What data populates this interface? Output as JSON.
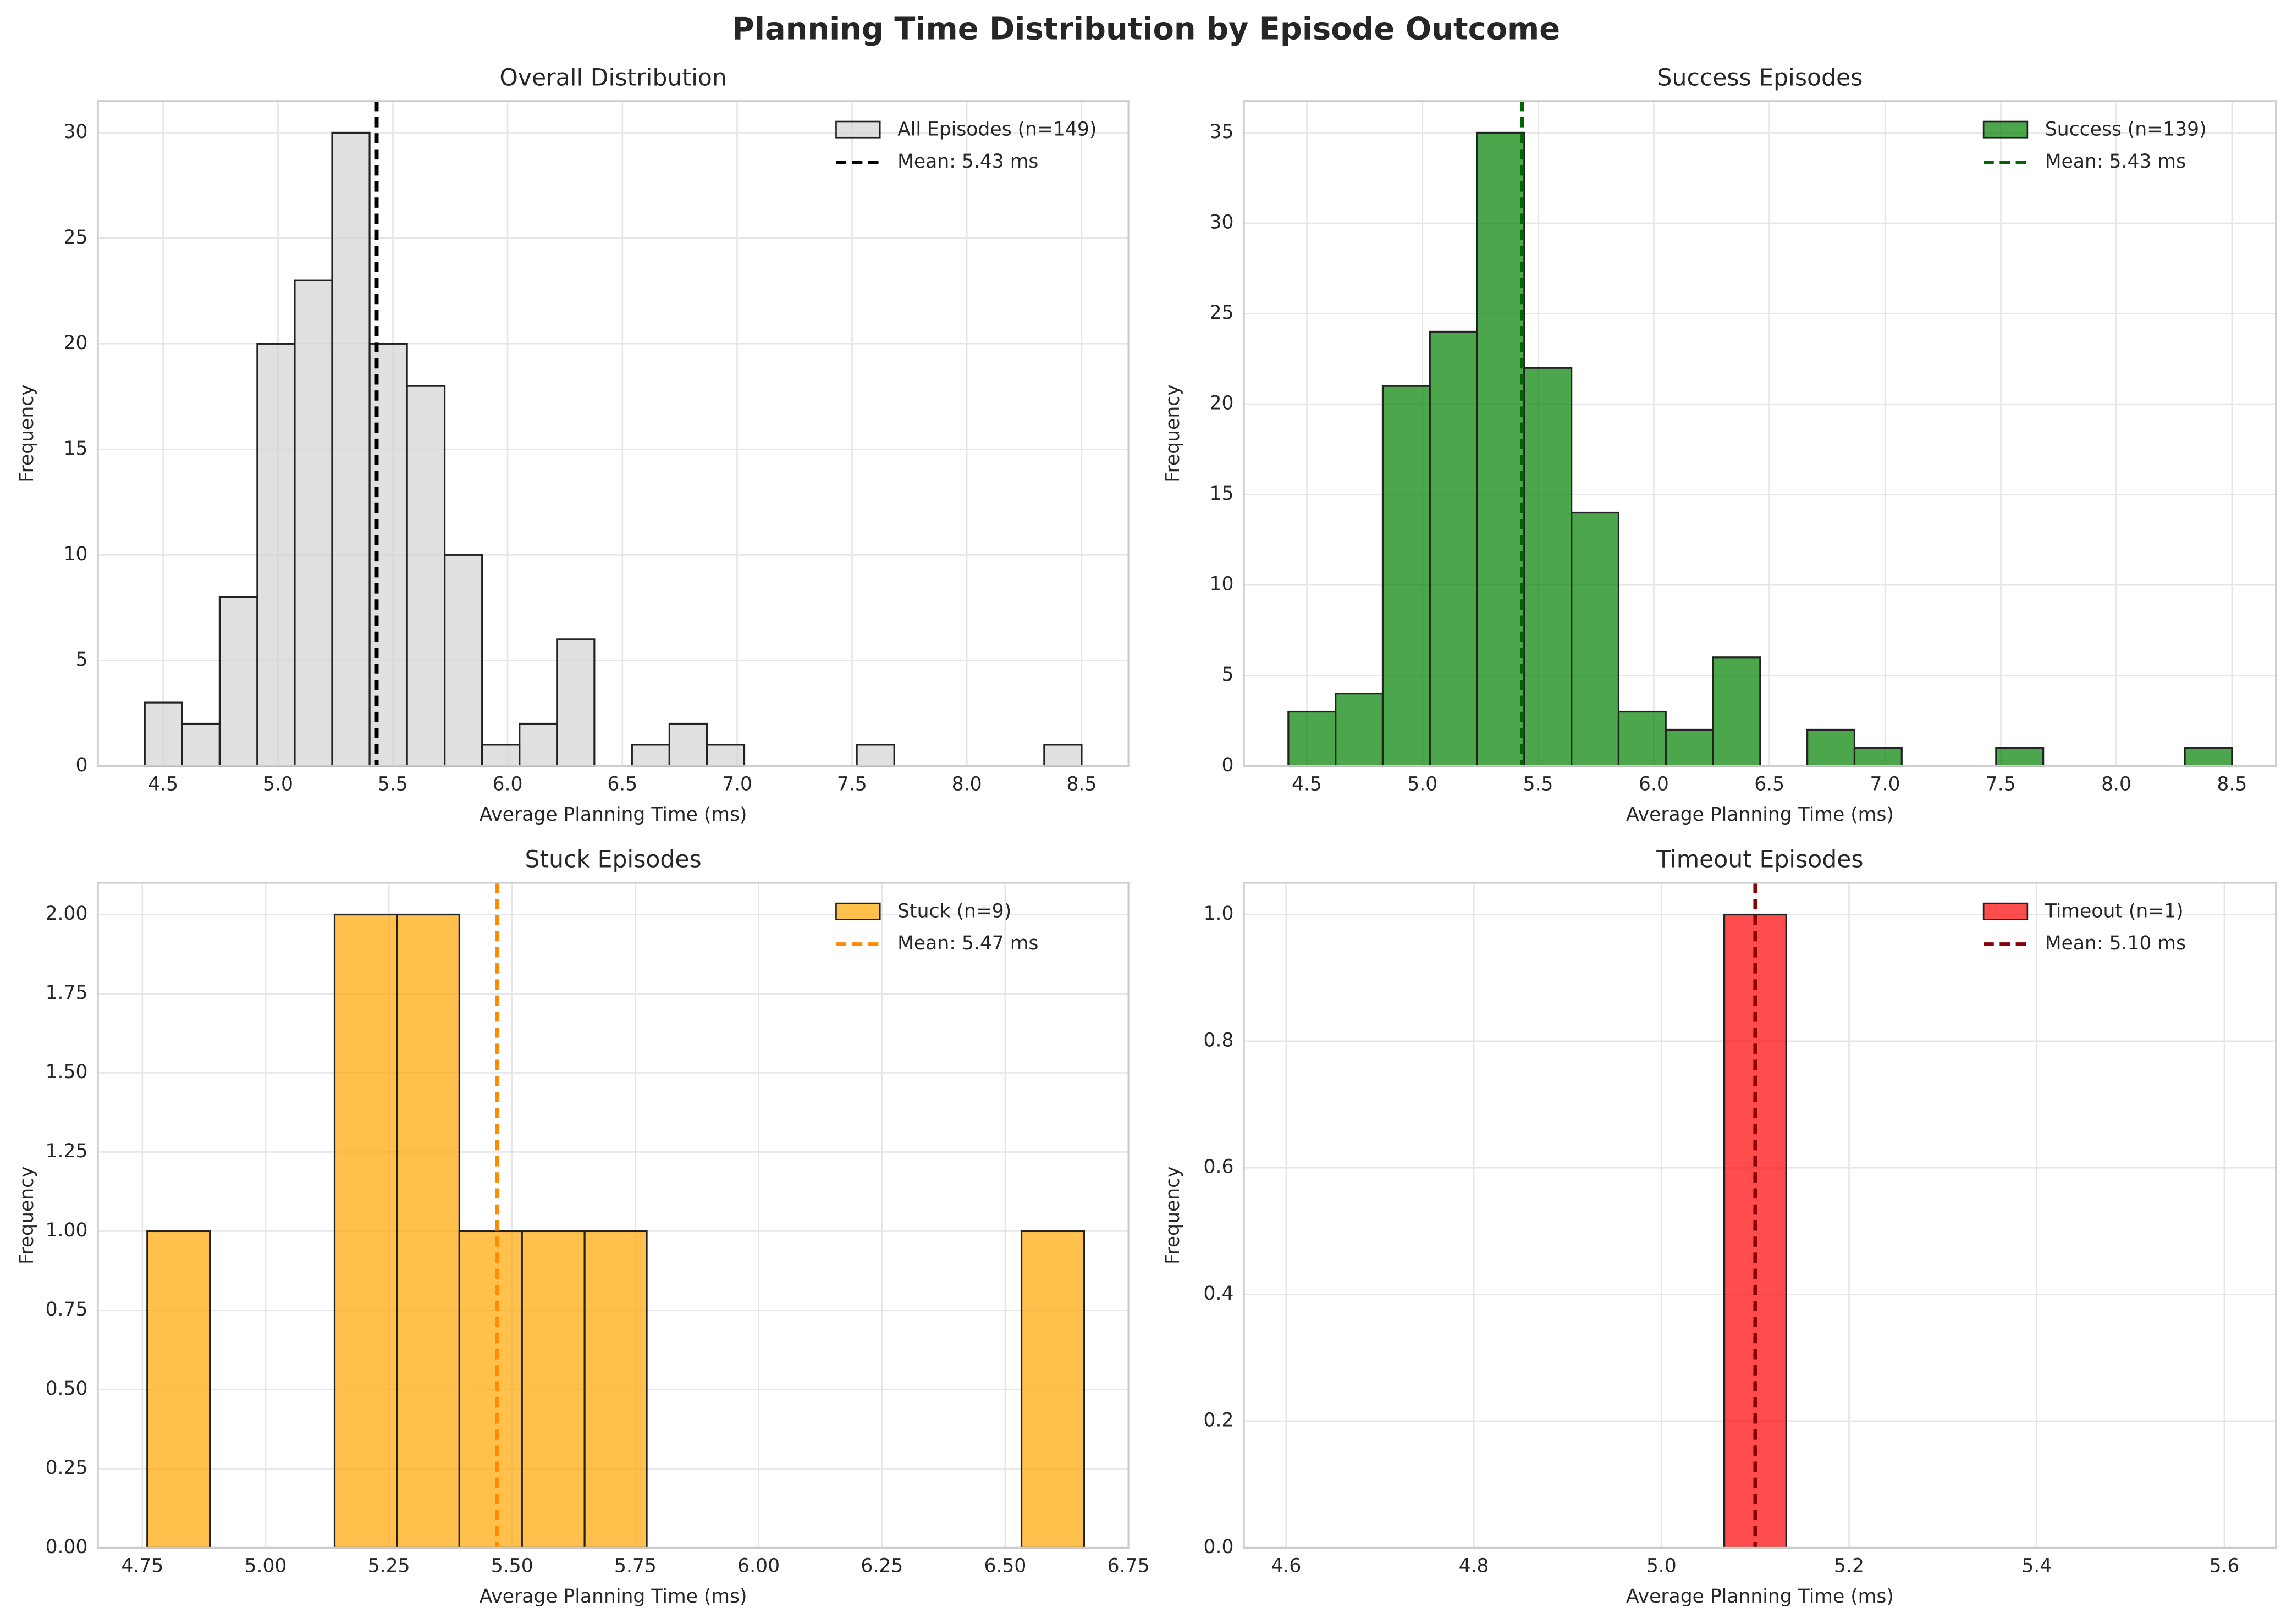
{
  "title": "Planning Time Distribution by Episode Outcome",
  "chart_data": [
    {
      "type": "histogram",
      "title": "Overall Distribution",
      "xlabel": "Average Planning Time (ms)",
      "ylabel": "Frequency",
      "name": "All Episodes (n=149)",
      "color": "#d3d3d3",
      "edgecolor": "#222222",
      "bins": [
        4.42,
        4.583,
        4.746,
        4.91,
        5.073,
        5.236,
        5.399,
        5.562,
        5.726,
        5.889,
        6.052,
        6.215,
        6.378,
        6.542,
        6.705,
        6.868,
        7.031,
        7.194,
        7.358,
        7.521,
        7.684,
        7.847,
        8.01,
        8.174,
        8.337,
        8.5
      ],
      "counts": [
        3,
        2,
        8,
        20,
        23,
        30,
        20,
        18,
        10,
        1,
        2,
        6,
        0,
        1,
        2,
        1,
        0,
        0,
        0,
        1,
        0,
        0,
        0,
        0,
        1
      ],
      "mean": 5.43,
      "mean_label": "Mean: 5.43 ms",
      "mean_color": "#000000",
      "xlim": [
        4.216,
        8.704
      ],
      "ylim": [
        0,
        31.5
      ],
      "xticks": [
        4.5,
        {
          "value": 5,
          "label": "5.0"
        },
        5.5,
        {
          "value": 6,
          "label": "6.0"
        },
        6.5,
        {
          "value": 7,
          "label": "7.0"
        },
        7.5,
        {
          "value": 8,
          "label": "8.0"
        },
        8.5
      ],
      "yticks": [
        0,
        5,
        10,
        15,
        20,
        25,
        30
      ],
      "grid": true,
      "legend": "upper right"
    },
    {
      "type": "histogram",
      "title": "Success Episodes",
      "xlabel": "Average Planning Time (ms)",
      "ylabel": "Frequency",
      "name": "Success (n=139)",
      "color": "#008000",
      "edgecolor": "#222222",
      "bins": [
        4.42,
        4.624,
        4.828,
        5.032,
        5.236,
        5.44,
        5.644,
        5.848,
        6.052,
        6.256,
        6.46,
        6.664,
        6.868,
        7.072,
        7.276,
        7.48,
        7.684,
        7.888,
        8.092,
        8.296,
        8.5
      ],
      "counts": [
        3,
        4,
        21,
        24,
        35,
        22,
        14,
        3,
        2,
        6,
        0,
        2,
        1,
        0,
        0,
        1,
        0,
        0,
        0,
        1
      ],
      "mean": 5.43,
      "mean_label": "Mean: 5.43 ms",
      "mean_color": "#006400",
      "xlim": [
        4.228,
        8.69
      ],
      "ylim": [
        0,
        36.75
      ],
      "xticks": [
        4.5,
        {
          "value": 5,
          "label": "5.0"
        },
        5.5,
        {
          "value": 6,
          "label": "6.0"
        },
        6.5,
        {
          "value": 7,
          "label": "7.0"
        },
        7.5,
        {
          "value": 8,
          "label": "8.0"
        },
        8.5
      ],
      "yticks": [
        0,
        5,
        10,
        15,
        20,
        25,
        30,
        35
      ],
      "grid": true,
      "legend": "upper right"
    },
    {
      "type": "histogram",
      "title": "Stuck Episodes",
      "xlabel": "Average Planning Time (ms)",
      "ylabel": "Frequency",
      "name": "Stuck (n=9)",
      "color": "#ffa500",
      "edgecolor": "#222222",
      "bins": [
        4.76,
        4.887,
        5.013,
        5.14,
        5.267,
        5.393,
        5.52,
        5.647,
        5.773,
        5.9,
        6.027,
        6.153,
        6.28,
        6.407,
        6.533,
        6.66
      ],
      "counts": [
        1,
        0,
        0,
        2,
        2,
        1,
        1,
        1,
        0,
        0,
        0,
        0,
        0,
        0,
        1
      ],
      "mean": 5.47,
      "mean_label": "Mean: 5.47 ms",
      "mean_color": "#ff8c00",
      "xlim": [
        4.66,
        6.75
      ],
      "ylim": [
        0,
        2.1
      ],
      "xticks": [
        4.75,
        {
          "value": 5,
          "label": "5.00"
        },
        5.25,
        {
          "value": 5.5,
          "label": "5.50"
        },
        5.75,
        {
          "value": 6,
          "label": "6.00"
        },
        6.25,
        {
          "value": 6.5,
          "label": "6.50"
        },
        6.75
      ],
      "yticks": [
        {
          "value": 0,
          "label": "0.00"
        },
        0.25,
        {
          "value": 0.5,
          "label": "0.50"
        },
        0.75,
        {
          "value": 1,
          "label": "1.00"
        },
        1.25,
        {
          "value": 1.5,
          "label": "1.50"
        },
        1.75,
        {
          "value": 2,
          "label": "2.00"
        }
      ],
      "grid": true,
      "legend": "upper right"
    },
    {
      "type": "histogram",
      "title": "Timeout Episodes",
      "xlabel": "Average Planning Time (ms)",
      "ylabel": "Frequency",
      "name": "Timeout (n=1)",
      "color": "#ff0000",
      "edgecolor": "#222222",
      "bins": [
        5.067,
        5.133
      ],
      "counts": [
        1
      ],
      "mean": 5.1,
      "mean_label": "Mean: 5.10 ms",
      "mean_color": "#8b0000",
      "xlim": [
        4.555,
        5.655
      ],
      "ylim": [
        0,
        1.05
      ],
      "xticks": [
        4.6,
        4.8,
        {
          "value": 5,
          "label": "5.0"
        },
        5.2,
        5.4,
        5.6
      ],
      "yticks": [
        {
          "value": 0,
          "label": "0.0"
        },
        0.2,
        0.4,
        0.6,
        0.8,
        {
          "value": 1,
          "label": "1.0"
        }
      ],
      "grid": true,
      "legend": "upper right"
    }
  ]
}
